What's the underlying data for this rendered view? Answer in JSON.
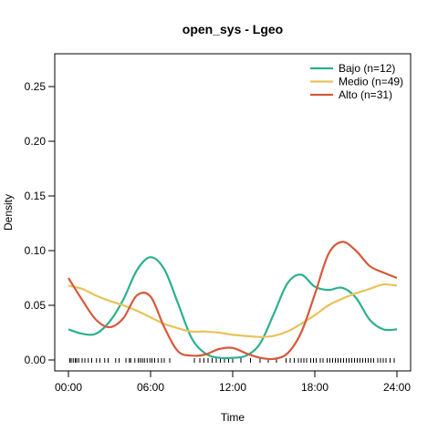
{
  "chart_data": {
    "type": "line",
    "title": "open_sys - Lgeo",
    "xlabel": "Time",
    "ylabel": "Density",
    "xlim": [
      -1,
      25
    ],
    "ylim": [
      -0.01,
      0.28
    ],
    "x_ticks": [
      {
        "value": 0,
        "label": "00:00"
      },
      {
        "value": 6,
        "label": "06:00"
      },
      {
        "value": 12,
        "label": "12:00"
      },
      {
        "value": 18,
        "label": "18:00"
      },
      {
        "value": 24,
        "label": "24:00"
      }
    ],
    "y_ticks": [
      {
        "value": 0,
        "label": "0.00"
      },
      {
        "value": 0.05,
        "label": "0.05"
      },
      {
        "value": 0.1,
        "label": "0.10"
      },
      {
        "value": 0.15,
        "label": "0.15"
      },
      {
        "value": 0.2,
        "label": "0.20"
      },
      {
        "value": 0.25,
        "label": "0.25"
      }
    ],
    "legend_position": "top-right",
    "grid": false,
    "series": [
      {
        "name": "Bajo (n=12)",
        "color": "#2cb08f",
        "x": [
          0,
          1,
          2,
          3,
          4,
          5,
          6,
          7,
          8,
          9,
          10,
          11,
          12,
          13,
          14,
          15,
          16,
          17,
          18,
          19,
          20,
          21,
          22,
          23,
          24
        ],
        "y": [
          0.028,
          0.024,
          0.024,
          0.035,
          0.055,
          0.082,
          0.094,
          0.083,
          0.052,
          0.02,
          0.006,
          0.002,
          0.002,
          0.004,
          0.015,
          0.042,
          0.07,
          0.078,
          0.067,
          0.064,
          0.066,
          0.057,
          0.037,
          0.028,
          0.028
        ]
      },
      {
        "name": "Medio (n=49)",
        "color": "#e8c25a",
        "x": [
          0,
          1,
          2,
          3,
          4,
          5,
          6,
          7,
          8,
          9,
          10,
          11,
          12,
          13,
          14,
          15,
          16,
          17,
          18,
          19,
          20,
          21,
          22,
          23,
          24
        ],
        "y": [
          0.068,
          0.065,
          0.059,
          0.054,
          0.05,
          0.045,
          0.039,
          0.033,
          0.029,
          0.026,
          0.026,
          0.025,
          0.023,
          0.022,
          0.021,
          0.022,
          0.026,
          0.033,
          0.041,
          0.05,
          0.056,
          0.061,
          0.065,
          0.069,
          0.068
        ]
      },
      {
        "name": "Alto (n=31)",
        "color": "#d45a3c",
        "x": [
          0,
          1,
          2,
          3,
          4,
          5,
          6,
          7,
          8,
          9,
          10,
          11,
          12,
          13,
          14,
          15,
          16,
          17,
          18,
          19,
          20,
          21,
          22,
          23,
          24
        ],
        "y": [
          0.075,
          0.055,
          0.037,
          0.03,
          0.038,
          0.059,
          0.058,
          0.03,
          0.008,
          0.004,
          0.005,
          0.01,
          0.011,
          0.006,
          0.002,
          0.001,
          0.006,
          0.025,
          0.06,
          0.097,
          0.108,
          0.1,
          0.086,
          0.08,
          0.075
        ]
      }
    ],
    "rug": [
      0.1,
      0.2,
      0.35,
      0.5,
      0.6,
      0.75,
      1.0,
      1.2,
      1.45,
      1.7,
      2.05,
      2.3,
      2.65,
      2.9,
      3.45,
      3.7,
      4.2,
      4.45,
      4.55,
      4.85,
      5.1,
      5.25,
      5.4,
      5.55,
      5.75,
      5.95,
      6.1,
      6.3,
      6.55,
      6.8,
      7.0,
      7.4,
      9.2,
      9.6,
      9.9,
      10.2,
      10.5,
      10.8,
      11.1,
      11.4,
      11.7,
      12.0,
      12.6,
      13.3,
      14.0,
      14.6,
      15.2,
      15.9,
      16.2,
      16.5,
      16.8,
      17.0,
      17.2,
      17.4,
      17.7,
      17.9,
      18.1,
      18.4,
      18.6,
      18.9,
      19.1,
      19.3,
      19.5,
      19.7,
      19.9,
      20.1,
      20.3,
      20.5,
      20.7,
      20.9,
      21.1,
      21.3,
      21.5,
      21.7,
      21.9,
      22.1,
      22.3,
      22.6,
      22.8,
      23.0,
      23.2,
      23.5,
      23.8
    ]
  }
}
